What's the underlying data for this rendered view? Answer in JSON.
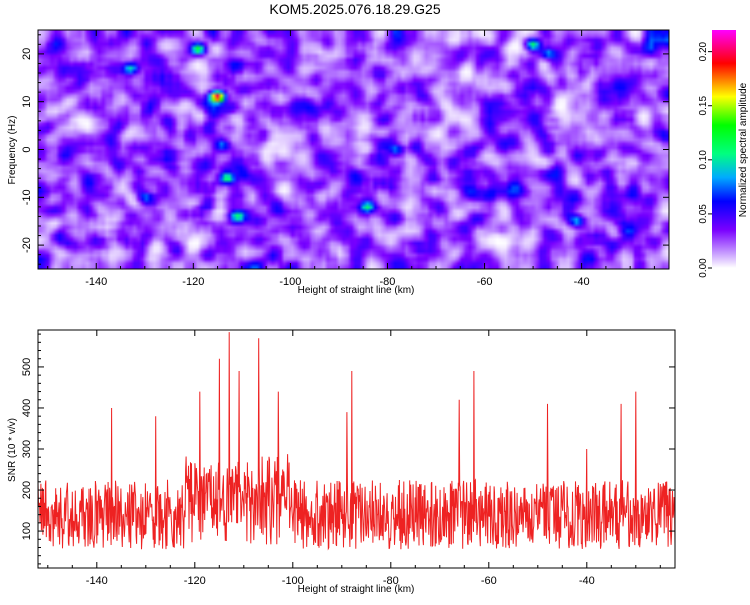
{
  "title": "KOM5.2025.076.18.29.G25",
  "colors": {
    "snr_line": "#ee2222",
    "background": "#ffffff"
  },
  "chart_data": [
    {
      "type": "heatmap",
      "xlabel": "Height of straight line (km)",
      "ylabel": "Frequency (Hz)",
      "xlim": [
        -152,
        -22
      ],
      "ylim": [
        -25,
        25
      ],
      "x_ticks": [
        -140,
        -120,
        -100,
        -80,
        -60,
        -40
      ],
      "y_ticks": [
        -20,
        -10,
        0,
        10,
        20
      ],
      "colorbar": {
        "label": "Normalized spectral amplitude",
        "range": [
          0,
          0.22
        ],
        "ticks": [
          0.0,
          0.05,
          0.1,
          0.15,
          0.2
        ],
        "tick_labels": [
          "0.00",
          "0.05",
          "0.10",
          "0.15",
          "0.20"
        ],
        "colormap": [
          "#ffffff",
          "#7a00ff",
          "#0000ff",
          "#00aaff",
          "#00ff80",
          "#ffff00",
          "#ff0000",
          "#ff00ff"
        ]
      },
      "hotspots": [
        {
          "x": -115,
          "y": 11,
          "value": 0.19
        },
        {
          "x": -119,
          "y": 21,
          "value": 0.1
        },
        {
          "x": -50,
          "y": 22,
          "value": 0.09
        },
        {
          "x": -113,
          "y": -6,
          "value": 0.09
        },
        {
          "x": -111,
          "y": -14,
          "value": 0.07
        },
        {
          "x": -47,
          "y": 20,
          "value": 0.07
        },
        {
          "x": -133,
          "y": 17,
          "value": 0.07
        },
        {
          "x": -84,
          "y": -12,
          "value": 0.07
        },
        {
          "x": -41,
          "y": -15,
          "value": 0.06
        },
        {
          "x": -78,
          "y": 0,
          "value": 0.05
        },
        {
          "x": -114,
          "y": 1,
          "value": 0.05
        },
        {
          "x": -130,
          "y": -10,
          "value": 0.05
        }
      ]
    },
    {
      "type": "line",
      "xlabel": "Height of straight line (km)",
      "ylabel": "SNR (10 * v/v)",
      "xlim": [
        -152,
        -22
      ],
      "ylim": [
        10,
        590
      ],
      "x_ticks": [
        -140,
        -120,
        -100,
        -80,
        -60,
        -40
      ],
      "y_ticks": [
        100,
        200,
        300,
        400,
        500
      ],
      "series": [
        {
          "color": "#ee2222",
          "baseline": 140,
          "noise_amplitude": 85,
          "peaks": [
            {
              "x": -113,
              "y": 585
            },
            {
              "x": -107,
              "y": 570
            },
            {
              "x": -115,
              "y": 520
            },
            {
              "x": -111,
              "y": 490
            },
            {
              "x": -103,
              "y": 440
            },
            {
              "x": -119,
              "y": 440
            },
            {
              "x": -137,
              "y": 400
            },
            {
              "x": -128,
              "y": 380
            },
            {
              "x": -89,
              "y": 390
            },
            {
              "x": -88,
              "y": 490
            },
            {
              "x": -66,
              "y": 420
            },
            {
              "x": -63,
              "y": 490
            },
            {
              "x": -48,
              "y": 410
            },
            {
              "x": -33,
              "y": 410
            },
            {
              "x": -30,
              "y": 440
            },
            {
              "x": -40,
              "y": 300
            }
          ]
        }
      ]
    }
  ]
}
